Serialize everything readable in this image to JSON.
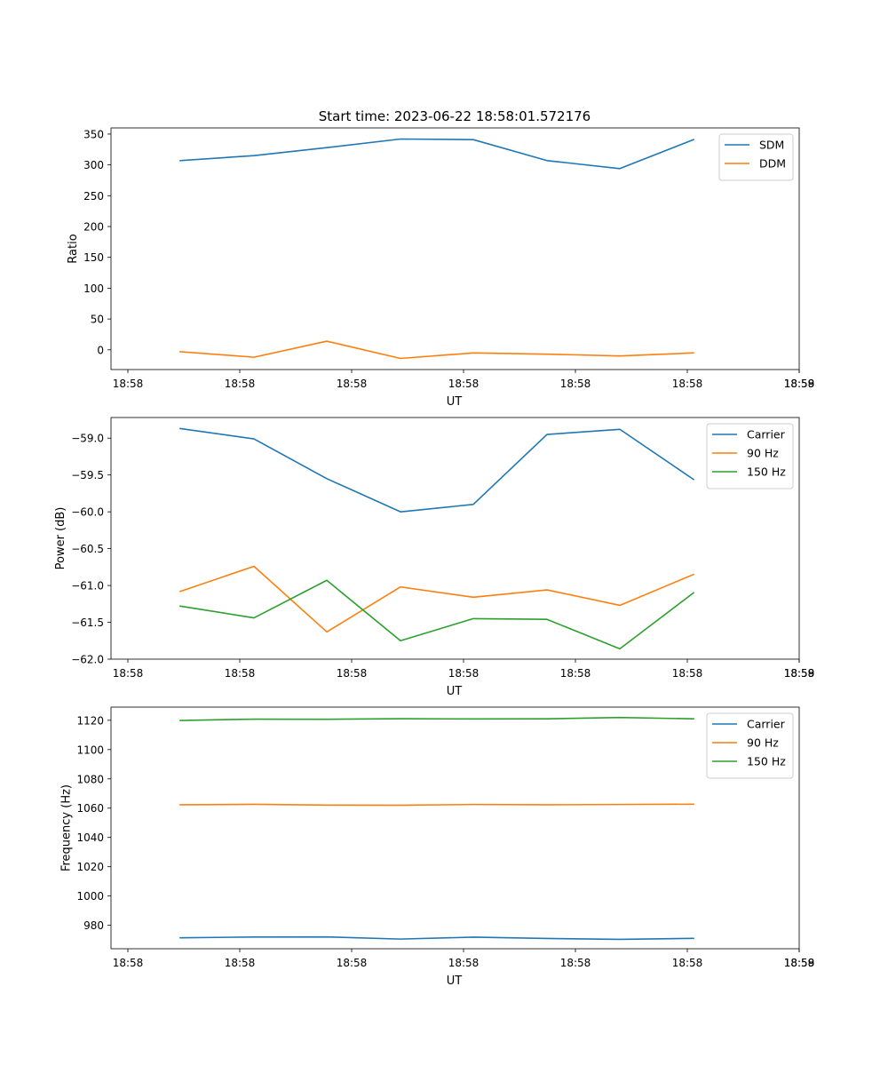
{
  "title": "Start time: 2023-06-22 18:58:01.572176",
  "colors": {
    "blue": "#1f77b4",
    "orange": "#ff7f0e",
    "green": "#2ca02c"
  },
  "chart_data": [
    {
      "type": "line",
      "xlabel": "UT",
      "ylabel": "Ratio",
      "x_tick_labels": [
        "18:58",
        "18:58",
        "18:58",
        "18:58",
        "18:58",
        "18:58",
        "18:58",
        "18:59"
      ],
      "y_ticks": [
        0,
        50,
        100,
        150,
        200,
        250,
        300,
        350
      ],
      "y_tick_labels": [
        "0",
        "50",
        "100",
        "150",
        "200",
        "250",
        "300",
        "350"
      ],
      "ylim": [
        -32,
        360
      ],
      "legend_position": "top-right",
      "series": [
        {
          "name": "SDM",
          "color": "#1f77b4",
          "values": [
            307,
            315,
            328,
            342,
            341,
            307,
            294,
            341
          ]
        },
        {
          "name": "DDM",
          "color": "#ff7f0e",
          "values": [
            -3,
            -12,
            14,
            -14,
            -5,
            -7,
            -10,
            -5
          ]
        }
      ]
    },
    {
      "type": "line",
      "xlabel": "UT",
      "ylabel": "Power (dB)",
      "x_tick_labels": [
        "18:58",
        "18:58",
        "18:58",
        "18:58",
        "18:58",
        "18:58",
        "18:58",
        "18:59"
      ],
      "y_ticks": [
        -59.0,
        -59.5,
        -60.0,
        -60.5,
        -61.0,
        -61.5,
        -62.0
      ],
      "y_tick_labels": [
        "−59.0",
        "−59.5",
        "−60.0",
        "−60.5",
        "−61.0",
        "−61.5",
        "−62.0"
      ],
      "ylim": [
        -62.0,
        -58.72
      ],
      "legend_position": "top-right",
      "series": [
        {
          "name": "Carrier",
          "color": "#1f77b4",
          "values": [
            -58.87,
            -59.01,
            -59.55,
            -60.0,
            -59.9,
            -58.95,
            -58.88,
            -59.56
          ]
        },
        {
          "name": "90 Hz",
          "color": "#ff7f0e",
          "values": [
            -61.08,
            -60.74,
            -61.63,
            -61.02,
            -61.16,
            -61.06,
            -61.27,
            -60.85
          ]
        },
        {
          "name": "150 Hz",
          "color": "#2ca02c",
          "values": [
            -61.28,
            -61.44,
            -60.93,
            -61.75,
            -61.45,
            -61.46,
            -61.86,
            -61.1
          ]
        }
      ]
    },
    {
      "type": "line",
      "xlabel": "UT",
      "ylabel": "Frequency (Hz)",
      "x_tick_labels": [
        "18:58",
        "18:58",
        "18:58",
        "18:58",
        "18:58",
        "18:58",
        "18:58",
        "18:59"
      ],
      "y_ticks": [
        980,
        1000,
        1020,
        1040,
        1060,
        1080,
        1100,
        1120
      ],
      "y_tick_labels": [
        "980",
        "1000",
        "1020",
        "1040",
        "1060",
        "1080",
        "1100",
        "1120"
      ],
      "ylim": [
        964,
        1129
      ],
      "legend_position": "top-right",
      "series": [
        {
          "name": "Carrier",
          "color": "#1f77b4",
          "values": [
            971.5,
            972.0,
            972.1,
            970.6,
            971.9,
            971.0,
            970.4,
            971.1
          ]
        },
        {
          "name": "90 Hz",
          "color": "#ff7f0e",
          "values": [
            1062.3,
            1062.6,
            1062.1,
            1062.0,
            1062.5,
            1062.3,
            1062.5,
            1062.7
          ]
        },
        {
          "name": "150 Hz",
          "color": "#2ca02c",
          "values": [
            1119.9,
            1120.8,
            1120.7,
            1121.1,
            1120.9,
            1121.0,
            1121.9,
            1121.0
          ]
        }
      ]
    }
  ]
}
